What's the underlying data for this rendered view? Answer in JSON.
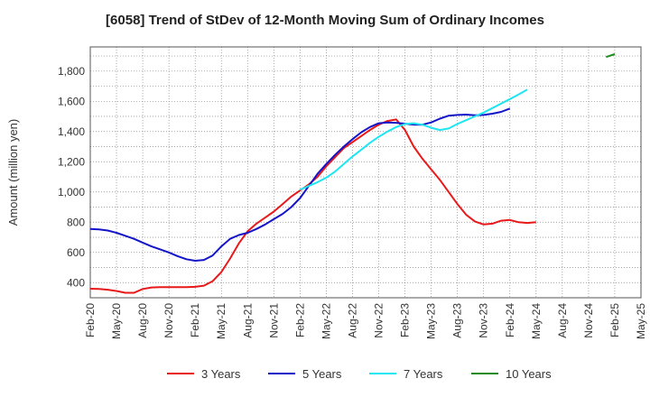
{
  "chart_data": {
    "type": "line",
    "title": "[6058]  Trend of StDev of 12-Month Moving Sum of Ordinary Incomes",
    "xlabel": "",
    "ylabel": "Amount (million yen)",
    "ylim": [
      300,
      1960
    ],
    "yticks": [
      400,
      600,
      800,
      1000,
      1200,
      1400,
      1600,
      1800
    ],
    "ytick_labels": [
      "400",
      "600",
      "800",
      "1,000",
      "1,200",
      "1,400",
      "1,600",
      "1,800"
    ],
    "xticks": [
      "Feb-20",
      "May-20",
      "Aug-20",
      "Nov-20",
      "Feb-21",
      "May-21",
      "Aug-21",
      "Nov-21",
      "Feb-22",
      "May-22",
      "Aug-22",
      "Nov-22",
      "Feb-23",
      "May-23",
      "Aug-23",
      "Nov-23",
      "Feb-24",
      "May-24",
      "Aug-24",
      "Nov-24",
      "Feb-25",
      "May-25"
    ],
    "grid": true,
    "legend_position": "bottom",
    "series": [
      {
        "name": "3 Years",
        "color": "#e8191a",
        "start_index": 0,
        "values": [
          360,
          358,
          353,
          345,
          333,
          333,
          358,
          368,
          370,
          370,
          370,
          370,
          372,
          380,
          410,
          470,
          560,
          660,
          740,
          790,
          830,
          870,
          920,
          970,
          1010,
          1050,
          1100,
          1170,
          1230,
          1290,
          1330,
          1370,
          1410,
          1445,
          1470,
          1480,
          1410,
          1300,
          1220,
          1150,
          1080,
          1000,
          920,
          850,
          805,
          785,
          790,
          810,
          815,
          800,
          795,
          800
        ]
      },
      {
        "name": "5 Years",
        "color": "#1414c8",
        "start_index": 0,
        "values": [
          755,
          752,
          745,
          730,
          710,
          690,
          665,
          640,
          620,
          600,
          575,
          555,
          545,
          550,
          580,
          640,
          690,
          715,
          730,
          755,
          785,
          820,
          855,
          900,
          960,
          1040,
          1120,
          1185,
          1245,
          1300,
          1350,
          1395,
          1430,
          1455,
          1460,
          1458,
          1452,
          1446,
          1445,
          1460,
          1485,
          1505,
          1510,
          1512,
          1508,
          1510,
          1518,
          1530,
          1552
        ]
      },
      {
        "name": "7 Years",
        "color": "#1ee6f0",
        "start_index": 24,
        "values": [
          1015,
          1040,
          1065,
          1095,
          1135,
          1185,
          1235,
          1280,
          1325,
          1365,
          1400,
          1430,
          1450,
          1455,
          1445,
          1425,
          1410,
          1420,
          1450,
          1475,
          1500,
          1525,
          1555,
          1585,
          1615,
          1645,
          1678
        ]
      },
      {
        "name": "10 Years",
        "color": "#228b22",
        "start_index": 59,
        "values": [
          1893,
          1912
        ]
      }
    ]
  }
}
